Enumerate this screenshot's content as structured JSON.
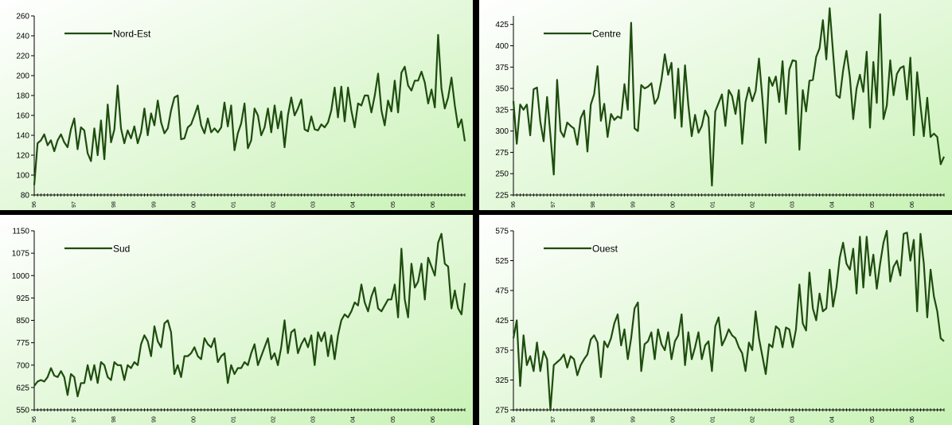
{
  "line_color": "#1e4d0e",
  "background_gradient": [
    "#ffffff",
    "#c9f2b6"
  ],
  "chart_data": [
    {
      "type": "line",
      "legend": "Nord-Est",
      "legend_position": "top-left",
      "ylim": [
        80,
        260
      ],
      "yticks": [
        80,
        100,
        120,
        140,
        160,
        180,
        200,
        220,
        240,
        260
      ],
      "xticks": [
        "96",
        "97",
        "98",
        "99",
        "00",
        "01",
        "02",
        "03",
        "04",
        "05",
        "06"
      ],
      "grid": false,
      "series": [
        {
          "values": [
            90,
            132,
            135,
            141,
            130,
            135,
            124,
            135,
            141,
            133,
            128,
            146,
            157,
            126,
            148,
            145,
            122,
            114,
            147,
            120,
            155,
            116,
            171,
            133,
            146,
            190,
            147,
            132,
            145,
            137,
            149,
            132,
            143,
            167,
            140,
            162,
            150,
            175,
            153,
            142,
            147,
            165,
            178,
            180,
            136,
            137,
            148,
            151,
            160,
            170,
            150,
            142,
            157,
            143,
            147,
            143,
            148,
            173,
            149,
            170,
            125,
            142,
            152,
            172,
            127,
            135,
            167,
            160,
            140,
            148,
            167,
            143,
            170,
            147,
            164,
            128,
            160,
            178,
            160,
            167,
            176,
            146,
            144,
            159,
            146,
            145,
            151,
            148,
            153,
            165,
            188,
            158,
            189,
            154,
            188,
            165,
            148,
            172,
            170,
            180,
            180,
            163,
            180,
            202,
            165,
            150,
            175,
            164,
            195,
            163,
            203,
            209,
            190,
            185,
            195,
            195,
            204,
            193,
            172,
            186,
            168,
            241,
            187,
            167,
            178,
            198,
            170,
            148,
            156,
            134
          ]
        }
      ]
    },
    {
      "type": "line",
      "legend": "Centre",
      "legend_position": "top-left",
      "ylim": [
        225,
        435
      ],
      "yticks": [
        225,
        250,
        275,
        300,
        325,
        350,
        375,
        400,
        425
      ],
      "xticks": [
        "96",
        "97",
        "98",
        "99",
        "00",
        "01",
        "02",
        "03",
        "04",
        "05",
        "06"
      ],
      "grid": false,
      "series": [
        {
          "values": [
            335,
            285,
            331,
            325,
            331,
            295,
            349,
            351,
            311,
            288,
            340,
            295,
            249,
            360,
            300,
            293,
            310,
            306,
            303,
            284,
            315,
            324,
            276,
            331,
            343,
            376,
            312,
            332,
            293,
            320,
            313,
            317,
            315,
            355,
            325,
            427,
            303,
            300,
            354,
            350,
            352,
            356,
            332,
            339,
            360,
            390,
            366,
            380,
            315,
            373,
            305,
            377,
            330,
            294,
            319,
            298,
            306,
            324,
            316,
            236,
            323,
            333,
            343,
            306,
            348,
            341,
            320,
            348,
            285,
            334,
            351,
            335,
            347,
            385,
            338,
            286,
            363,
            353,
            364,
            334,
            382,
            320,
            372,
            383,
            382,
            278,
            348,
            323,
            359,
            360,
            387,
            397,
            430,
            384,
            444,
            393,
            342,
            339,
            371,
            394,
            363,
            314,
            350,
            366,
            346,
            393,
            304,
            381,
            333,
            437,
            314,
            330,
            383,
            342,
            367,
            374,
            376,
            337,
            386,
            295,
            369,
            330,
            294,
            339,
            293,
            297,
            293,
            261,
            270
          ]
        }
      ]
    },
    {
      "type": "line",
      "legend": "Sud",
      "legend_position": "top-left",
      "ylim": [
        550,
        1150
      ],
      "yticks": [
        550,
        625,
        700,
        775,
        850,
        925,
        1000,
        1075,
        1150
      ],
      "xticks": [
        "96",
        "97",
        "98",
        "99",
        "00",
        "01",
        "02",
        "03",
        "04",
        "05",
        "06"
      ],
      "grid": false,
      "series": [
        {
          "values": [
            630,
            645,
            650,
            645,
            660,
            690,
            665,
            660,
            680,
            660,
            600,
            670,
            660,
            595,
            640,
            640,
            700,
            650,
            700,
            640,
            710,
            700,
            660,
            650,
            710,
            700,
            700,
            650,
            700,
            690,
            710,
            700,
            770,
            800,
            780,
            730,
            830,
            780,
            760,
            840,
            850,
            810,
            670,
            700,
            660,
            730,
            730,
            740,
            760,
            730,
            720,
            790,
            770,
            760,
            790,
            710,
            730,
            740,
            640,
            700,
            670,
            690,
            690,
            710,
            700,
            740,
            770,
            700,
            730,
            760,
            790,
            720,
            740,
            700,
            760,
            850,
            740,
            810,
            820,
            740,
            770,
            790,
            760,
            800,
            700,
            810,
            780,
            810,
            730,
            800,
            720,
            800,
            850,
            870,
            860,
            880,
            910,
            900,
            970,
            910,
            880,
            930,
            960,
            890,
            880,
            900,
            920,
            920,
            970,
            860,
            1090,
            920,
            860,
            1040,
            960,
            980,
            1040,
            920,
            1060,
            1030,
            1000,
            1110,
            1140,
            1040,
            1030,
            890,
            950,
            890,
            870,
            975
          ]
        }
      ]
    },
    {
      "type": "line",
      "legend": "Ouest",
      "legend_position": "top-left",
      "ylim": [
        275,
        575
      ],
      "yticks": [
        275,
        325,
        375,
        425,
        475,
        525,
        575
      ],
      "xticks": [
        "96",
        "97",
        "98",
        "99",
        "00",
        "01",
        "02",
        "03",
        "04",
        "05",
        "06"
      ],
      "grid": false,
      "series": [
        {
          "values": [
            395,
            425,
            315,
            400,
            350,
            365,
            340,
            388,
            340,
            373,
            360,
            275,
            350,
            355,
            360,
            368,
            346,
            365,
            360,
            333,
            350,
            360,
            368,
            393,
            400,
            388,
            330,
            390,
            380,
            395,
            420,
            435,
            383,
            410,
            360,
            395,
            445,
            455,
            340,
            385,
            390,
            405,
            360,
            410,
            385,
            375,
            405,
            360,
            390,
            400,
            435,
            350,
            405,
            360,
            380,
            405,
            360,
            383,
            390,
            340,
            415,
            430,
            383,
            395,
            410,
            400,
            395,
            380,
            370,
            340,
            388,
            375,
            440,
            395,
            365,
            335,
            385,
            380,
            415,
            410,
            380,
            413,
            410,
            380,
            410,
            485,
            420,
            408,
            505,
            445,
            425,
            470,
            440,
            445,
            510,
            448,
            480,
            530,
            555,
            520,
            510,
            545,
            470,
            565,
            480,
            565,
            500,
            535,
            478,
            520,
            555,
            575,
            490,
            515,
            525,
            500,
            570,
            572,
            525,
            560,
            440,
            570,
            520,
            430,
            510,
            465,
            440,
            395,
            390
          ]
        }
      ]
    }
  ]
}
